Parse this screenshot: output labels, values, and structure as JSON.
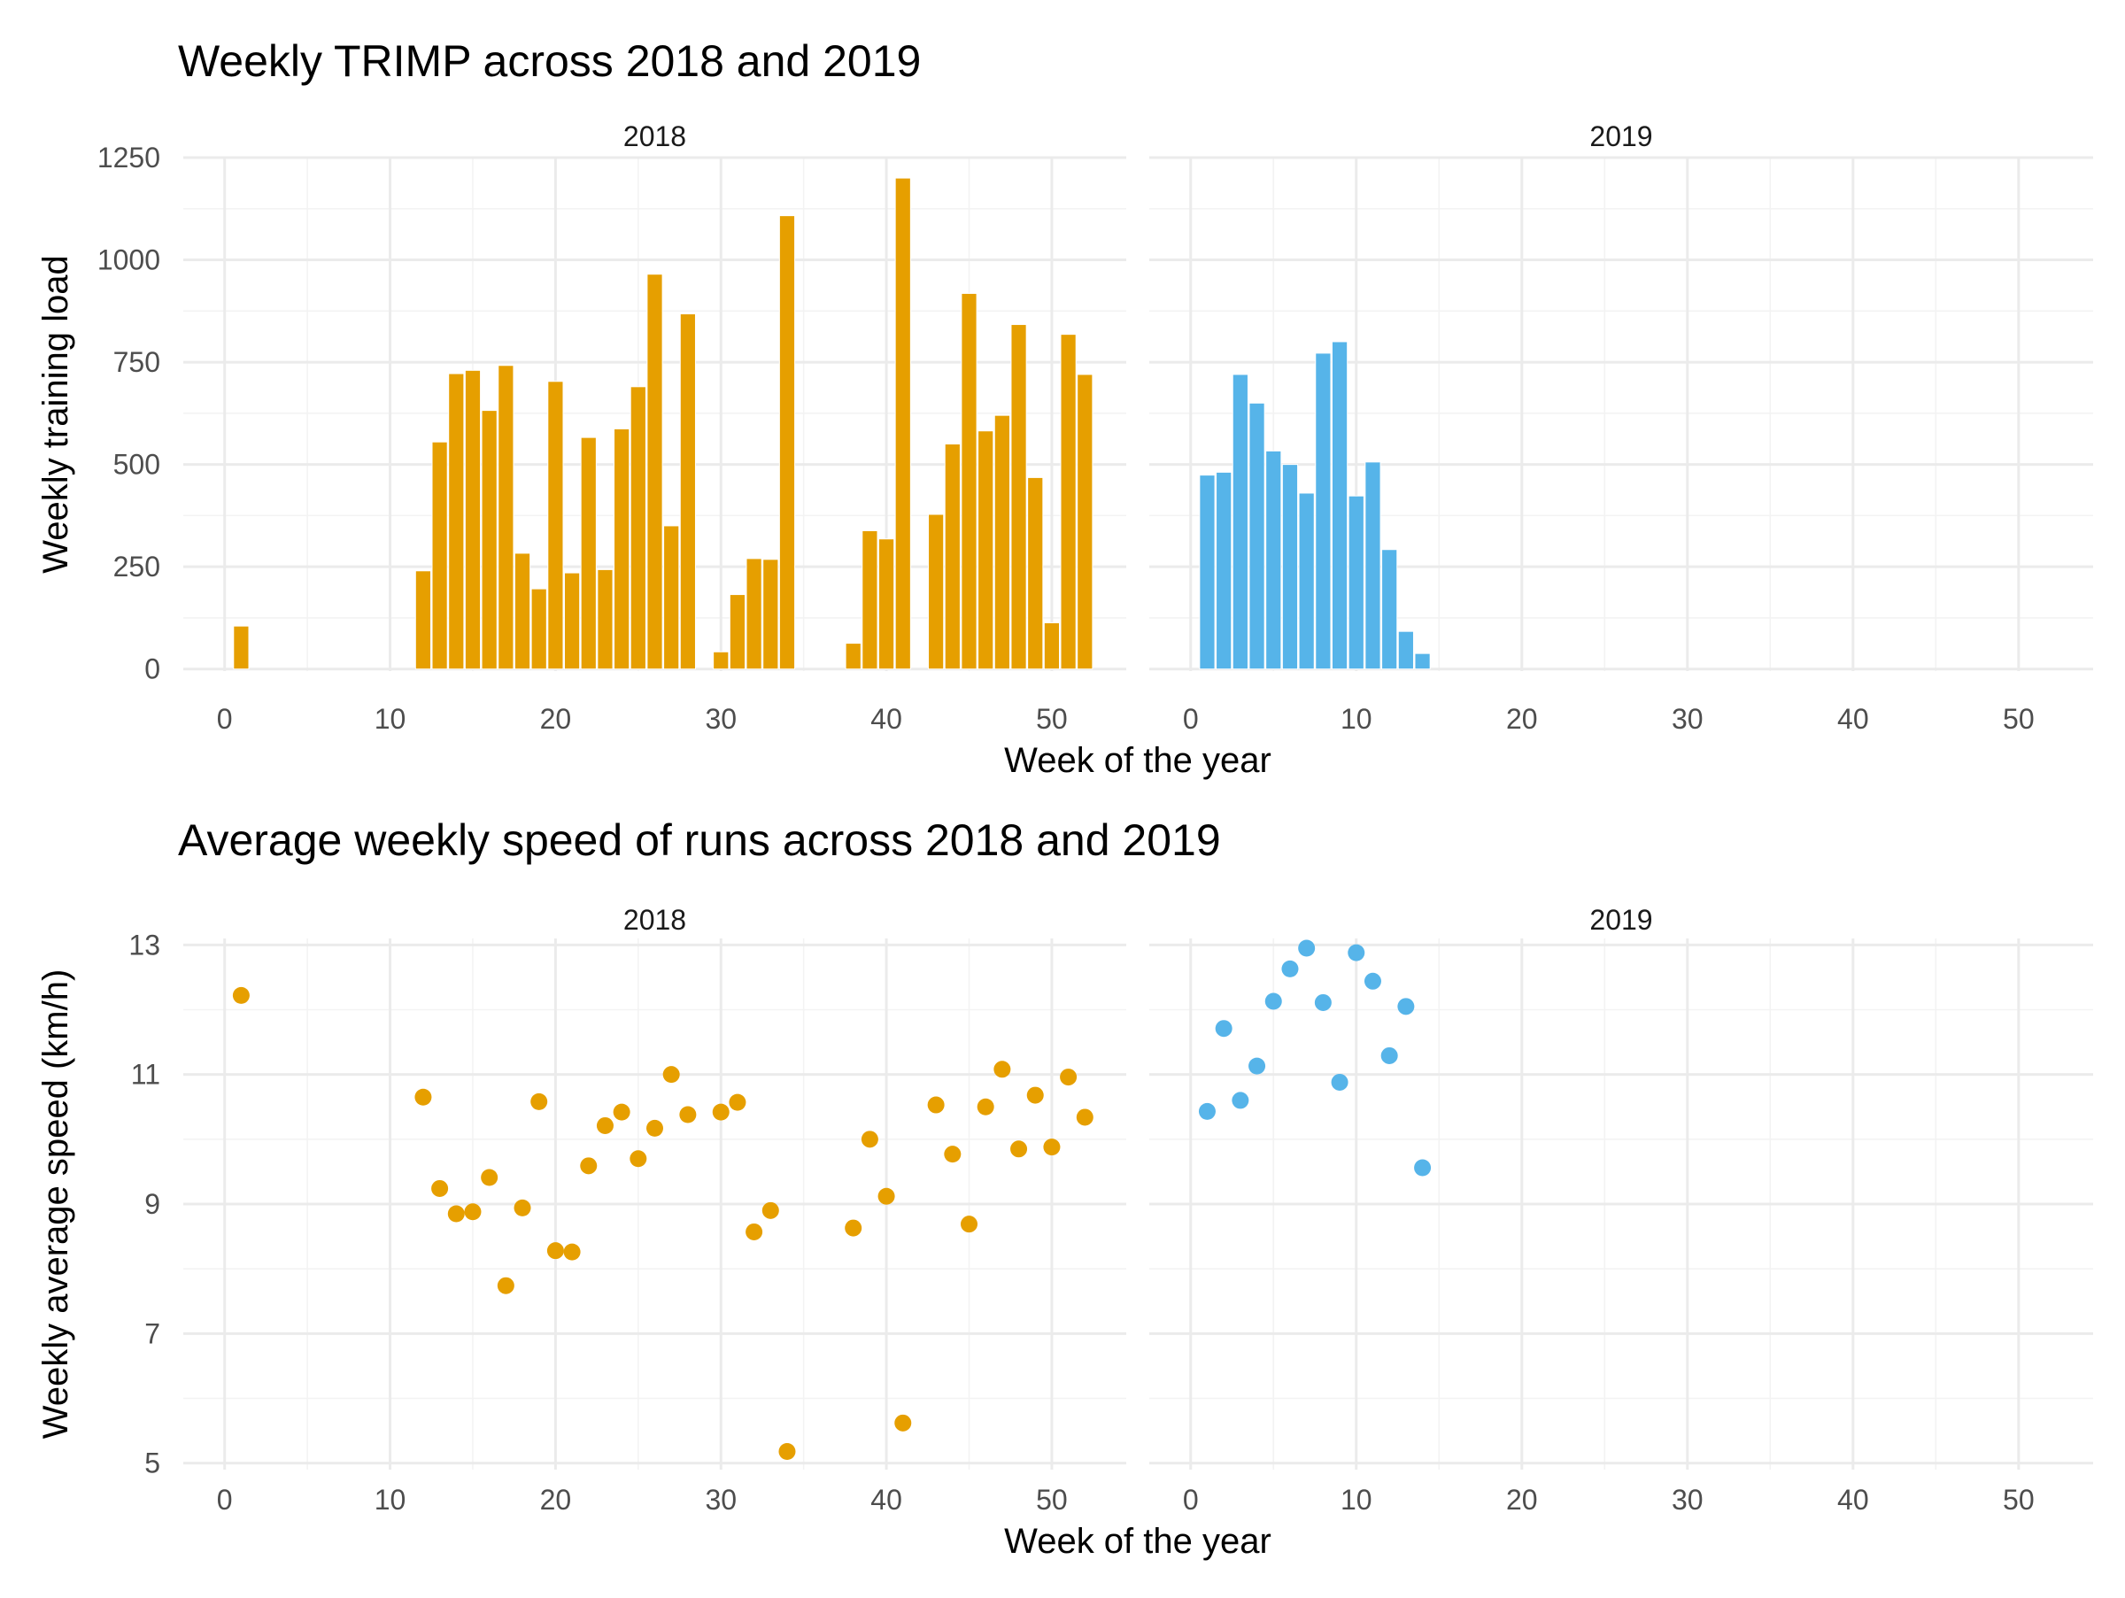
{
  "chart_data": [
    {
      "type": "bar",
      "title": "Weekly TRIMP across 2018 and 2019",
      "xlabel": "Week of the year",
      "ylabel": "Weekly training load",
      "xlim": [
        -2.5,
        54.5
      ],
      "ylim": [
        -5,
        1250
      ],
      "x_ticks": [
        0,
        10,
        20,
        30,
        40,
        50
      ],
      "y_ticks": [
        0,
        250,
        500,
        750,
        1000,
        1250
      ],
      "grid": true,
      "legend": "none",
      "panels": [
        {
          "label": "2018",
          "color": "#E69F00",
          "x": [
            1,
            12,
            13,
            14,
            15,
            16,
            17,
            18,
            19,
            20,
            21,
            22,
            23,
            24,
            25,
            26,
            27,
            28,
            30,
            31,
            32,
            33,
            34,
            38,
            39,
            40,
            41,
            43,
            44,
            45,
            46,
            47,
            48,
            49,
            50,
            51,
            52
          ],
          "values": [
            105,
            240,
            555,
            722,
            730,
            632,
            742,
            283,
            196,
            703,
            235,
            566,
            243,
            587,
            690,
            965,
            350,
            868,
            42,
            182,
            270,
            268,
            1108,
            63,
            338,
            318,
            1200,
            378,
            550,
            918,
            582,
            620,
            842,
            468,
            113,
            818,
            720
          ]
        },
        {
          "label": "2019",
          "color": "#56B4E9",
          "x": [
            1,
            2,
            3,
            4,
            5,
            6,
            7,
            8,
            9,
            10,
            11,
            12,
            13,
            14
          ],
          "values": [
            474,
            481,
            720,
            650,
            533,
            500,
            430,
            772,
            800,
            423,
            506,
            292,
            92,
            38
          ]
        }
      ]
    },
    {
      "type": "scatter",
      "title": "Average weekly speed of runs across 2018 and 2019",
      "xlabel": "Week of the year",
      "ylabel": "Weekly average speed (km/h)",
      "xlim": [
        -2.5,
        54.5
      ],
      "ylim": [
        4.9,
        13.1
      ],
      "x_ticks": [
        0,
        10,
        20,
        30,
        40,
        50
      ],
      "y_ticks": [
        5,
        7,
        9,
        11,
        13
      ],
      "grid": true,
      "legend": "none",
      "panels": [
        {
          "label": "2018",
          "color": "#E69F00",
          "x": [
            1,
            12,
            13,
            14,
            15,
            16,
            17,
            18,
            19,
            20,
            21,
            22,
            23,
            24,
            25,
            26,
            27,
            28,
            30,
            31,
            32,
            33,
            34,
            38,
            39,
            40,
            41,
            43,
            44,
            45,
            46,
            47,
            48,
            49,
            50,
            51,
            52
          ],
          "values": [
            12.22,
            10.65,
            9.24,
            8.85,
            8.88,
            9.41,
            7.74,
            8.94,
            10.58,
            8.28,
            8.26,
            9.59,
            10.21,
            10.42,
            9.7,
            10.17,
            11.0,
            10.38,
            10.42,
            10.57,
            8.57,
            8.9,
            5.18,
            8.63,
            10.0,
            9.12,
            5.62,
            10.53,
            9.77,
            8.69,
            10.5,
            11.08,
            9.85,
            10.68,
            9.88,
            10.96,
            10.34
          ]
        },
        {
          "label": "2019",
          "color": "#56B4E9",
          "x": [
            1,
            2,
            3,
            4,
            5,
            6,
            7,
            8,
            9,
            10,
            11,
            12,
            13,
            14
          ],
          "values": [
            10.43,
            11.71,
            10.6,
            11.13,
            12.13,
            12.63,
            12.95,
            12.11,
            10.88,
            12.88,
            12.44,
            11.29,
            12.05,
            9.56
          ]
        }
      ]
    }
  ]
}
